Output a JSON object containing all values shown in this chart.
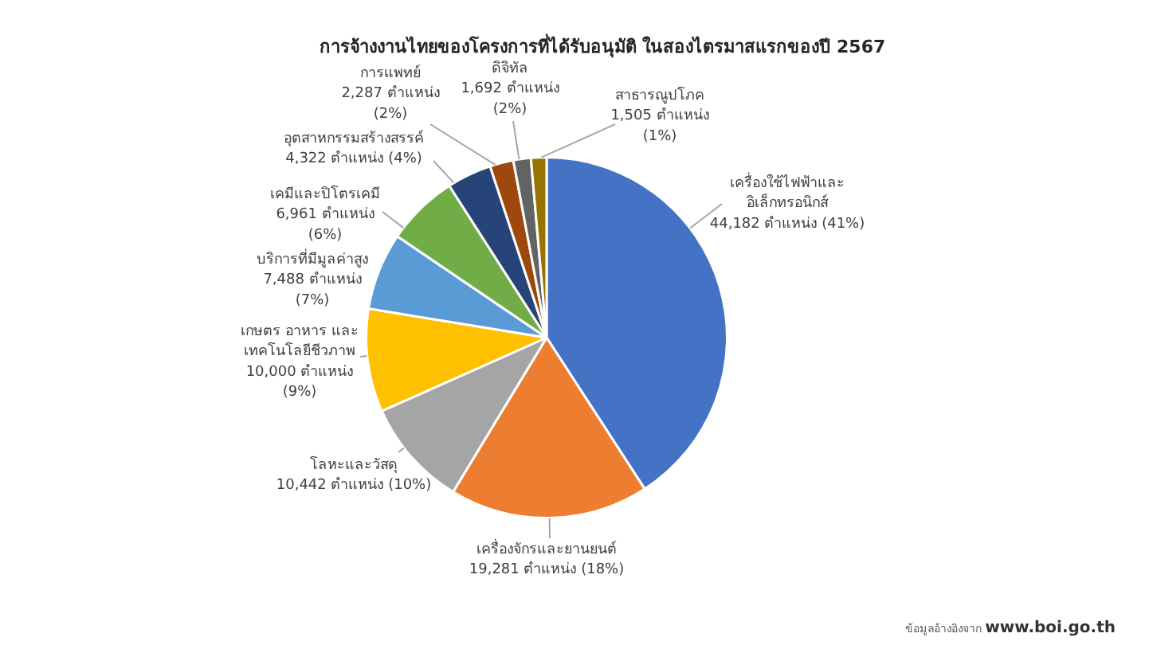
{
  "chart_data": {
    "type": "pie",
    "title": "การจ้างงานไทยของโครงการที่ได้รับอนุมัติ ในสองไตรมาสแรกของปี 2567",
    "categories": [
      "เครื่องใช้ไฟฟ้าและอิเล็กทรอนิกส์",
      "เครื่องจักรและยานยนต์",
      "โลหะและวัสดุ",
      "เกษตร อาหาร และเทคโนโลยีชีวภาพ",
      "บริการที่มีมูลค่าสูง",
      "เคมีและปิโตรเคมี",
      "อุตสาหกรรมสร้างสรรค์",
      "การแพทย์",
      "ดิจิทัล",
      "สาธารณูปโภค"
    ],
    "values": [
      44182,
      19281,
      10442,
      10000,
      7488,
      6961,
      4322,
      2287,
      1692,
      1505
    ],
    "colors": [
      "#4472c4",
      "#ed7d31",
      "#a5a5a5",
      "#ffc000",
      "#5b9bd5",
      "#70ad47",
      "#264478",
      "#9e480e",
      "#636363",
      "#997300"
    ],
    "value_labels": [
      "44,182 ตำแหน่ง (41%)",
      "19,281 ตำแหน่ง (18%)",
      "10,442 ตำแหน่ง (10%)",
      "10,000 ตำแหน่ง (9%)",
      "7,488 ตำแหน่ง (7%)",
      "6,961 ตำแหน่ง (6%)",
      "4,322 ตำแหน่ง (4%)",
      "2,287 ตำแหน่ง (2%)",
      "1,692 ตำแหน่ง (2%)",
      "1,505 ตำแหน่ง (1%)"
    ],
    "annotations": [
      "ข้อมูลอ้างอิงจาก www.boi.go.th"
    ],
    "legend": false
  }
}
